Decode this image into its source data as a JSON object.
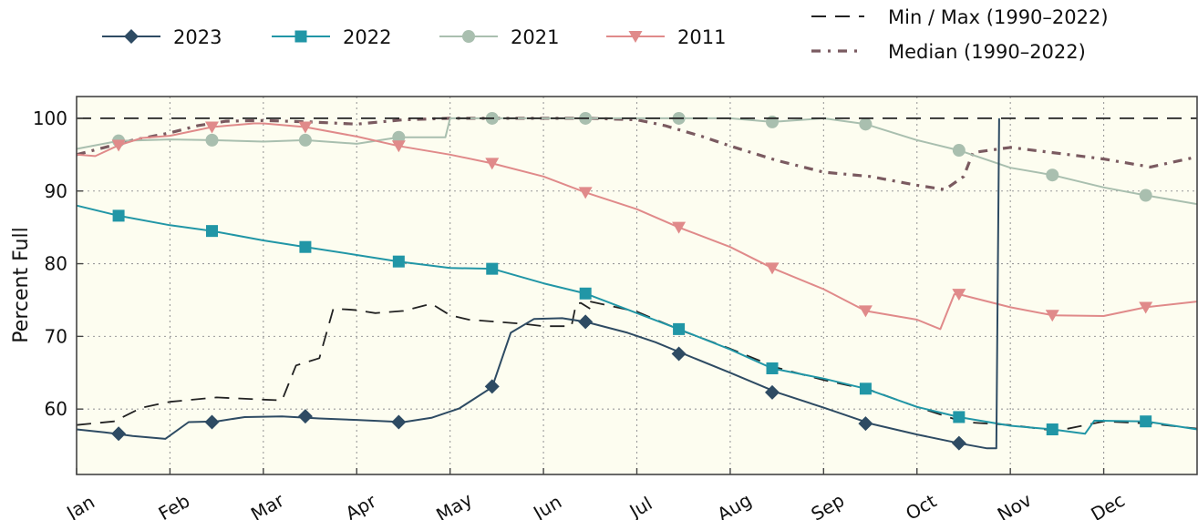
{
  "chart_data": {
    "type": "line",
    "ylabel": "Percent Full",
    "xlabel": "",
    "ylim": [
      51,
      103
    ],
    "xlim": [
      1,
      13
    ],
    "yticks": [
      60,
      70,
      80,
      90,
      100
    ],
    "ytick_labels": [
      "60",
      "70",
      "80",
      "90",
      "100"
    ],
    "x_ticks": [
      1,
      2,
      3,
      4,
      5,
      6,
      7,
      8,
      9,
      10,
      11,
      12
    ],
    "x_tick_labels": [
      "Jan",
      "Feb",
      "Mar",
      "Apr",
      "May",
      "Jun",
      "Jul",
      "Aug",
      "Sep",
      "Oct",
      "Nov",
      "Dec"
    ],
    "grid": true,
    "legend_position": "top",
    "colors": {
      "2023": "#2e4b63",
      "2022": "#2196a6",
      "2021": "#a9bfaf",
      "2011": "#e08a8a",
      "minmax": "#222222",
      "median": "#7a5a60",
      "plot_bg": "#fdfdf0"
    },
    "series": [
      {
        "name": "2023",
        "key": "2023",
        "marker": "diamond",
        "x": [
          1.0,
          1.3,
          1.6,
          1.95,
          2.2,
          2.5,
          2.8,
          3.2,
          3.6,
          4.0,
          4.5,
          4.8,
          5.1,
          5.45,
          5.65,
          5.9,
          6.2,
          6.45,
          6.9,
          7.2,
          7.5,
          8.0,
          8.5,
          9.0,
          9.5,
          10.0,
          10.45,
          10.75,
          10.85,
          10.88
        ],
        "y": [
          57.2,
          56.8,
          56.3,
          55.9,
          58.2,
          58.3,
          58.9,
          59.0,
          58.7,
          58.5,
          58.2,
          58.8,
          60.1,
          63.0,
          70.5,
          72.4,
          72.5,
          72.0,
          70.5,
          69.2,
          67.6,
          65.0,
          62.3,
          60.2,
          58.0,
          56.5,
          55.3,
          54.6,
          54.6,
          100.0
        ],
        "marker_x": [
          1.45,
          2.45,
          3.45,
          4.45,
          5.45,
          6.45,
          7.45,
          8.45,
          9.45,
          10.45
        ],
        "marker_y": [
          56.6,
          58.2,
          59.0,
          58.2,
          63.1,
          72.0,
          67.6,
          62.3,
          58.0,
          55.3
        ]
      },
      {
        "name": "2022",
        "key": "2022",
        "marker": "square",
        "x": [
          1.0,
          1.45,
          2.0,
          2.45,
          3.0,
          3.45,
          4.0,
          4.45,
          5.0,
          5.45,
          6.0,
          6.45,
          7.0,
          7.45,
          8.0,
          8.45,
          9.0,
          9.45,
          10.0,
          10.45,
          11.0,
          11.45,
          11.8,
          11.9,
          12.45,
          13.0
        ],
        "y": [
          88.0,
          86.6,
          85.3,
          84.5,
          83.2,
          82.3,
          81.2,
          80.3,
          79.4,
          79.3,
          77.3,
          75.9,
          73.2,
          71.0,
          68.2,
          65.6,
          64.2,
          62.8,
          60.3,
          58.9,
          57.7,
          57.2,
          56.6,
          58.4,
          58.3,
          57.2
        ],
        "marker_x": [
          1.45,
          2.45,
          3.45,
          4.45,
          5.45,
          6.45,
          7.45,
          8.45,
          9.45,
          10.45,
          11.45,
          12.45
        ],
        "marker_y": [
          86.6,
          84.5,
          82.3,
          80.3,
          79.3,
          75.9,
          71.0,
          65.6,
          62.8,
          58.9,
          57.2,
          58.3
        ]
      },
      {
        "name": "2021",
        "key": "2021",
        "marker": "circle",
        "x": [
          1.0,
          1.45,
          2.0,
          2.45,
          3.0,
          3.45,
          4.0,
          4.45,
          4.95,
          5.0,
          5.45,
          6.0,
          6.45,
          7.0,
          7.45,
          8.0,
          8.45,
          9.0,
          9.45,
          10.0,
          10.45,
          11.0,
          11.45,
          12.0,
          12.45,
          13.0
        ],
        "y": [
          95.8,
          96.9,
          97.1,
          97.0,
          96.8,
          97.0,
          96.5,
          97.4,
          97.4,
          100.0,
          100.0,
          100.0,
          100.0,
          100.0,
          100.0,
          100.0,
          99.5,
          100.0,
          99.2,
          97.0,
          95.6,
          93.2,
          92.2,
          90.5,
          89.4,
          88.2
        ],
        "marker_x": [
          1.45,
          2.45,
          3.45,
          4.45,
          5.45,
          6.45,
          7.45,
          8.45,
          9.45,
          10.45,
          11.45,
          12.45
        ],
        "marker_y": [
          96.9,
          97.0,
          97.0,
          97.4,
          100.0,
          100.0,
          100.0,
          99.5,
          99.2,
          95.6,
          92.2,
          89.4
        ]
      },
      {
        "name": "2011",
        "key": "2011",
        "marker": "triangle-down",
        "x": [
          1.0,
          1.2,
          1.45,
          1.7,
          2.0,
          2.45,
          2.9,
          3.0,
          3.45,
          4.0,
          4.45,
          5.0,
          5.45,
          6.0,
          6.45,
          7.0,
          7.45,
          8.0,
          8.45,
          9.0,
          9.45,
          10.0,
          10.25,
          10.4,
          10.45,
          11.0,
          11.45,
          12.0,
          12.45,
          13.0
        ],
        "y": [
          95.0,
          94.8,
          96.3,
          97.3,
          97.6,
          98.8,
          99.3,
          99.3,
          98.8,
          97.5,
          96.2,
          95.0,
          93.8,
          92.0,
          89.8,
          87.5,
          85.0,
          82.3,
          79.4,
          76.5,
          73.5,
          72.3,
          71.0,
          75.8,
          75.8,
          74.0,
          72.9,
          72.8,
          74.0,
          74.8
        ],
        "marker_x": [
          1.45,
          2.45,
          3.45,
          4.45,
          5.45,
          6.45,
          7.45,
          8.45,
          9.45,
          10.45,
          11.45,
          12.45
        ],
        "marker_y": [
          96.3,
          98.8,
          98.8,
          96.2,
          93.8,
          89.8,
          85.0,
          79.4,
          73.5,
          75.8,
          72.9,
          74.0
        ]
      },
      {
        "name": "Min / Max (1990–2022)",
        "key": "minmax",
        "marker": "none",
        "dash": "dash",
        "segments": [
          {
            "x": [
              1.0,
              13.0
            ],
            "y": [
              100.0,
              100.0
            ]
          },
          {
            "x": [
              1.0,
              1.4,
              1.7,
              2.0,
              2.5,
              3.0,
              3.2,
              3.35,
              3.6,
              3.75,
              3.9,
              4.0,
              4.2,
              4.5,
              4.8,
              5.0,
              5.2,
              5.5,
              5.8,
              6.0,
              6.3,
              6.35,
              6.4,
              6.5
            ],
            "y": [
              57.8,
              58.3,
              60.2,
              61.0,
              61.6,
              61.3,
              61.2,
              66.0,
              67.0,
              73.8,
              73.7,
              73.6,
              73.2,
              73.5,
              74.5,
              72.9,
              72.3,
              72.0,
              71.7,
              71.4,
              71.4,
              74.5,
              74.6,
              73.8
            ]
          },
          {
            "x": [
              6.5,
              7.0,
              7.5,
              8.0,
              8.5,
              9.0,
              9.5,
              10.0,
              10.5,
              11.0,
              11.5,
              12.0,
              12.5,
              13.0
            ],
            "y": [
              74.8,
              73.4,
              70.7,
              68.3,
              65.7,
              64.0,
              62.6,
              60.3,
              58.2,
              57.8,
              57.0,
              58.3,
              58.0,
              57.3
            ]
          }
        ]
      },
      {
        "name": "Median (1990–2022)",
        "key": "median",
        "marker": "none",
        "dash": "dashdot",
        "x": [
          1.0,
          1.3,
          1.6,
          2.0,
          2.3,
          2.6,
          3.0,
          3.5,
          4.0,
          4.5,
          5.0,
          5.5,
          6.0,
          6.5,
          7.0,
          7.3,
          7.7,
          8.0,
          8.5,
          9.0,
          9.5,
          10.0,
          10.3,
          10.5,
          10.6,
          11.0,
          11.5,
          12.0,
          12.5,
          13.0
        ],
        "y": [
          95.0,
          96.0,
          97.0,
          98.0,
          99.0,
          99.6,
          99.7,
          99.5,
          99.2,
          99.8,
          100.0,
          100.0,
          100.0,
          100.0,
          99.8,
          99.0,
          97.5,
          96.2,
          94.2,
          92.6,
          92.0,
          90.8,
          90.2,
          92.0,
          95.3,
          96.0,
          95.2,
          94.4,
          93.3,
          94.7
        ]
      }
    ]
  }
}
